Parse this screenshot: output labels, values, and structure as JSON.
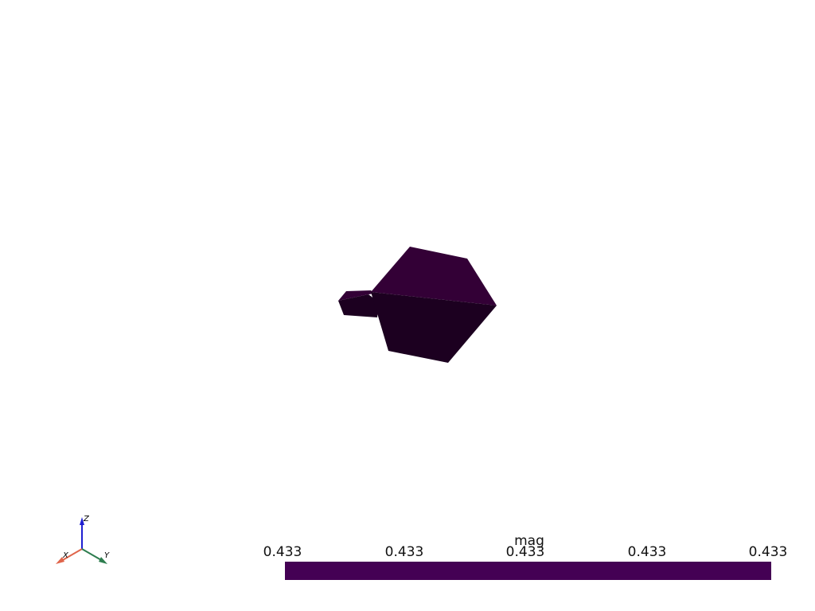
{
  "scene": {
    "background": "#ffffff",
    "mesh_face_colors": {
      "top": "#330036",
      "front": "#1c0020",
      "left_ear_top": "#330036",
      "left_ear_front": "#1c0020"
    }
  },
  "axes_widget": {
    "labels": {
      "x": "X",
      "y": "Y",
      "z": "Z"
    },
    "colors": {
      "x": "#e0654b",
      "y": "#2e7d4f",
      "z": "#1f1fd1"
    }
  },
  "scalar_bar": {
    "title": "mag",
    "color": "#440154",
    "ticks": [
      "0.433",
      "0.433",
      "0.433",
      "0.433",
      "0.433"
    ]
  }
}
